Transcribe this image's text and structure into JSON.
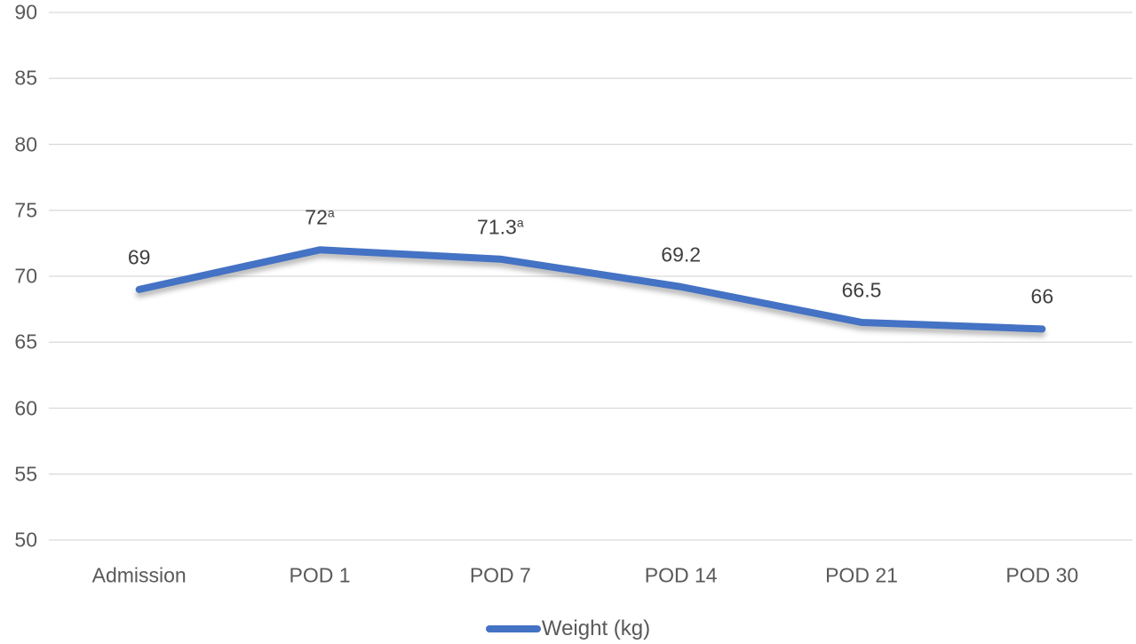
{
  "chart_data": {
    "type": "line",
    "title": "",
    "xlabel": "",
    "ylabel": "",
    "categories": [
      "Admission",
      "POD 1",
      "POD 7",
      "POD 14",
      "POD 21",
      "POD 30"
    ],
    "series": [
      {
        "name": "Weight (kg)",
        "values": [
          69,
          72,
          71.3,
          69.2,
          66.5,
          66
        ]
      }
    ],
    "point_labels": [
      {
        "text": "69",
        "superscript": ""
      },
      {
        "text": "72",
        "superscript": "a"
      },
      {
        "text": "71.3",
        "superscript": "a"
      },
      {
        "text": "69.2",
        "superscript": ""
      },
      {
        "text": "66.5",
        "superscript": ""
      },
      {
        "text": "66",
        "superscript": ""
      }
    ],
    "ylim": [
      50,
      90
    ],
    "yticks": [
      90,
      85,
      80,
      75,
      70,
      65,
      60,
      55,
      50
    ],
    "grid": "horizontal",
    "legend_position": "bottom",
    "legend_label": "Weight (kg)",
    "colors": {
      "line": "#4472C4",
      "gridline": "#D9D9D9",
      "axis_text": "#595959",
      "data_label_text": "#3F3F3F",
      "background": "#FFFFFF"
    }
  }
}
